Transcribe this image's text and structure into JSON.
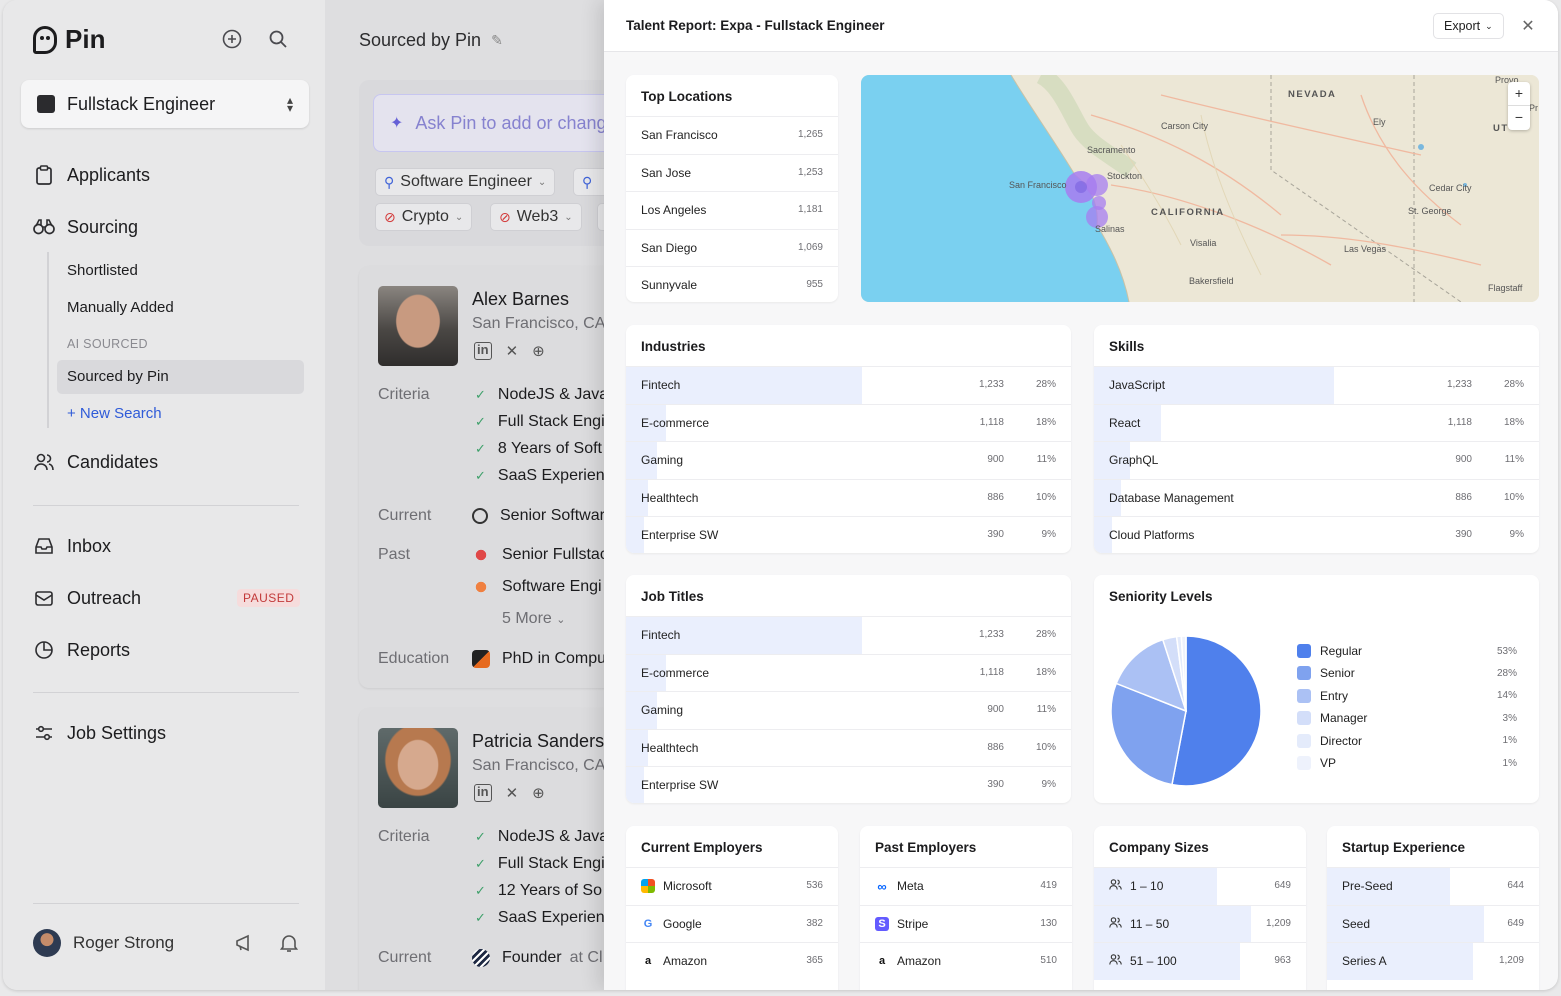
{
  "app": {
    "name": "Pin"
  },
  "sidebar": {
    "job": "Fullstack Engineer",
    "nav": {
      "applicants": "Applicants",
      "sourcing": "Sourcing",
      "shortlisted": "Shortlisted",
      "manually_added": "Manually Added",
      "ai_sourced_label": "AI SOURCED",
      "sourced_by_pin": "Sourced by Pin",
      "new_search": "+ New Search",
      "candidates": "Candidates",
      "inbox": "Inbox",
      "outreach": "Outreach",
      "outreach_badge": "PAUSED",
      "reports": "Reports",
      "job_settings": "Job Settings"
    },
    "user": "Roger Strong"
  },
  "middle": {
    "title": "Sourced by Pin",
    "ask_placeholder": "Ask Pin to add or change",
    "chips": {
      "software_engineer": "Software Engineer",
      "crypto": "Crypto",
      "web3": "Web3"
    },
    "candidates": [
      {
        "name": "Alex Barnes",
        "location": "San Francisco, CA",
        "criteria_label": "Criteria",
        "criteria": [
          "NodeJS & Java",
          "Full Stack Engi",
          "8 Years of Soft",
          "SaaS Experien"
        ],
        "current_label": "Current",
        "current": "Senior Softwar",
        "past_label": "Past",
        "past": [
          "Senior Fullstac",
          "Software Engi"
        ],
        "more": "5 More",
        "education_label": "Education",
        "education": "PhD in Compu"
      },
      {
        "name": "Patricia Sanders",
        "location": "San Francisco, CA",
        "criteria_label": "Criteria",
        "criteria": [
          "NodeJS & Java",
          "Full Stack Engi",
          "12 Years of So",
          "SaaS Experien"
        ],
        "current_label": "Current",
        "current": "Founder",
        "current_at": "at Cl"
      }
    ]
  },
  "report": {
    "title": "Talent Report: Expa - Fullstack Engineer",
    "export": "Export",
    "top_locations": {
      "title": "Top Locations",
      "rows": [
        {
          "label": "San Francisco",
          "count": "1,265"
        },
        {
          "label": "San Jose",
          "count": "1,253"
        },
        {
          "label": "Los Angeles",
          "count": "1,181"
        },
        {
          "label": "San Diego",
          "count": "1,069"
        },
        {
          "label": "Sunnyvale",
          "count": "955"
        }
      ]
    },
    "map_labels": {
      "nevada": "NEVADA",
      "california": "CALIFORNIA",
      "carson_city": "Carson City",
      "ely": "Ely",
      "sacramento": "Sacramento",
      "stockton": "Stockton",
      "san_francisco": "San Francisco",
      "salinas": "Salinas",
      "visalia": "Visalia",
      "bakersfield": "Bakersfield",
      "las_vegas": "Las Vegas",
      "cedar_city": "Cedar City",
      "st_george": "St. George",
      "flagstaff": "Flagstaff",
      "provo": "Provo",
      "ut": "UT",
      "pr": "Pr"
    },
    "industries": {
      "title": "Industries",
      "rows": [
        {
          "label": "Fintech",
          "count": "1,233",
          "pct": "28%",
          "fill": 0.53
        },
        {
          "label": "E-commerce",
          "count": "1,118",
          "pct": "18%",
          "fill": 0.09
        },
        {
          "label": "Gaming",
          "count": "900",
          "pct": "11%",
          "fill": 0.07
        },
        {
          "label": "Healthtech",
          "count": "886",
          "pct": "10%",
          "fill": 0.05
        },
        {
          "label": "Enterprise SW",
          "count": "390",
          "pct": "9%",
          "fill": 0.04
        }
      ]
    },
    "skills": {
      "title": "Skills",
      "rows": [
        {
          "label": "JavaScript",
          "count": "1,233",
          "pct": "28%",
          "fill": 0.54
        },
        {
          "label": "React",
          "count": "1,118",
          "pct": "18%",
          "fill": 0.15
        },
        {
          "label": "GraphQL",
          "count": "900",
          "pct": "11%",
          "fill": 0.08
        },
        {
          "label": "Database Management",
          "count": "886",
          "pct": "10%",
          "fill": 0.06
        },
        {
          "label": "Cloud Platforms",
          "count": "390",
          "pct": "9%",
          "fill": 0.04
        }
      ]
    },
    "job_titles": {
      "title": "Job Titles",
      "rows": [
        {
          "label": "Fintech",
          "count": "1,233",
          "pct": "28%",
          "fill": 0.53
        },
        {
          "label": "E-commerce",
          "count": "1,118",
          "pct": "18%",
          "fill": 0.09
        },
        {
          "label": "Gaming",
          "count": "900",
          "pct": "11%",
          "fill": 0.07
        },
        {
          "label": "Healthtech",
          "count": "886",
          "pct": "10%",
          "fill": 0.05
        },
        {
          "label": "Enterprise SW",
          "count": "390",
          "pct": "9%",
          "fill": 0.04
        }
      ]
    },
    "seniority": {
      "title": "Seniority Levels",
      "chart_data": {
        "type": "pie",
        "categories": [
          "Regular",
          "Senior",
          "Entry",
          "Manager",
          "Director",
          "VP"
        ],
        "values": [
          53,
          28,
          14,
          3,
          1,
          1
        ],
        "labels": [
          "53%",
          "28%",
          "14%",
          "3%",
          "1%",
          "1%"
        ],
        "colors": [
          "#4f80ec",
          "#7fa2ef",
          "#abc1f4",
          "#d3def9",
          "#e4ebfb",
          "#eef2fc"
        ]
      }
    },
    "current_employers": {
      "title": "Current Employers",
      "rows": [
        {
          "label": "Microsoft",
          "count": "536",
          "icon": "microsoft-icon"
        },
        {
          "label": "Google",
          "count": "382",
          "icon": "google-icon"
        },
        {
          "label": "Amazon",
          "count": "365",
          "icon": "amazon-icon"
        }
      ]
    },
    "past_employers": {
      "title": "Past Employers",
      "rows": [
        {
          "label": "Meta",
          "count": "419",
          "icon": "meta-icon"
        },
        {
          "label": "Stripe",
          "count": "130",
          "icon": "stripe-icon"
        },
        {
          "label": "Amazon",
          "count": "510",
          "icon": "amazon-icon"
        }
      ]
    },
    "company_sizes": {
      "title": "Company Sizes",
      "rows": [
        {
          "label": "1 – 10",
          "count": "649",
          "fill": 0.58
        },
        {
          "label": "11 – 50",
          "count": "1,209",
          "fill": 0.74
        },
        {
          "label": "51 – 100",
          "count": "963",
          "fill": 0.69
        }
      ]
    },
    "startup_experience": {
      "title": "Startup Experience",
      "rows": [
        {
          "label": "Pre-Seed",
          "count": "644",
          "fill": 0.58
        },
        {
          "label": "Seed",
          "count": "649",
          "fill": 0.74
        },
        {
          "label": "Series A",
          "count": "1,209",
          "fill": 0.69
        }
      ]
    }
  }
}
